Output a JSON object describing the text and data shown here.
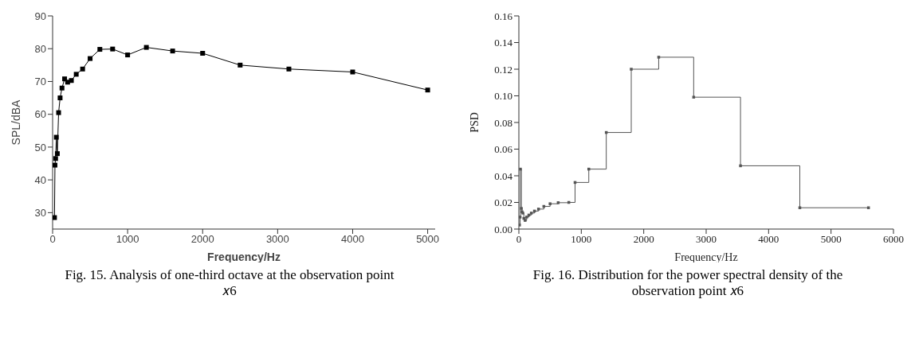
{
  "chart_data": [
    {
      "type": "line",
      "xlabel": "Frequency/Hz",
      "ylabel": "SPL/dBA",
      "x": [
        25,
        31.5,
        40,
        50,
        63,
        80,
        100,
        125,
        160,
        200,
        250,
        315,
        400,
        500,
        630,
        800,
        1000,
        1250,
        1600,
        2000,
        2500,
        3150,
        4000,
        5000
      ],
      "series": [
        {
          "color": "#000000",
          "values": [
            28.5,
            44.5,
            46.5,
            53,
            48,
            60.5,
            65,
            68,
            70.8,
            69.8,
            70.3,
            72.2,
            73.8,
            77,
            79.8,
            79.9,
            78.1,
            80.4,
            79.3,
            78.6,
            75,
            73.8,
            72.9,
            67.4
          ]
        }
      ],
      "xlim": [
        0,
        5100
      ],
      "xticks": [
        0,
        1000,
        2000,
        3000,
        4000,
        5000
      ],
      "ylim": [
        25,
        90
      ],
      "yticks": [
        30,
        40,
        50,
        60,
        70,
        80,
        90
      ],
      "marker": "square",
      "line_style": "solid",
      "grid": false,
      "legend": false,
      "annotations": [
        "Fig. 15. Analysis of one-third octave at the observation point 𝑥6"
      ]
    },
    {
      "type": "step",
      "xlabel": "Frequency/Hz",
      "ylabel": "PSD",
      "x": [
        10,
        20,
        25,
        40,
        50,
        63,
        80,
        100,
        125,
        160,
        200,
        250,
        315,
        400,
        500,
        630,
        800,
        900,
        1120,
        1400,
        1800,
        2240,
        2800,
        3550,
        4500,
        5600
      ],
      "series": [
        {
          "color": "#555555",
          "values": [
            0.003,
            0.009,
            0.045,
            0.0155,
            0.013,
            0.012,
            0.008,
            0.0065,
            0.009,
            0.0105,
            0.012,
            0.0135,
            0.015,
            0.017,
            0.019,
            0.0198,
            0.02,
            0.035,
            0.045,
            0.0725,
            0.12,
            0.129,
            0.099,
            0.0475,
            0.016,
            0.016
          ]
        }
      ],
      "xlim": [
        0,
        6000
      ],
      "xticks": [
        0,
        1000,
        2000,
        3000,
        4000,
        5000,
        6000
      ],
      "ylim": [
        0,
        0.16
      ],
      "yticks": [
        {
          "value": 0,
          "label": "0.00"
        },
        {
          "value": 0.02,
          "label": "0.02"
        },
        {
          "value": 0.04,
          "label": "0.04"
        },
        {
          "value": 0.06,
          "label": "0.06"
        },
        {
          "value": 0.08,
          "label": "0.08"
        },
        {
          "value": 0.1,
          "label": "0.10"
        },
        {
          "value": 0.12,
          "label": "0.12"
        },
        {
          "value": 0.14,
          "label": "0.14"
        },
        {
          "value": 0.16,
          "label": "0.16"
        }
      ],
      "marker": "square",
      "line_style": "solid",
      "grid": false,
      "legend": false,
      "annotations": [
        "Fig. 16. Distribution for the power spectral density of the observation point 𝑥6"
      ]
    }
  ]
}
